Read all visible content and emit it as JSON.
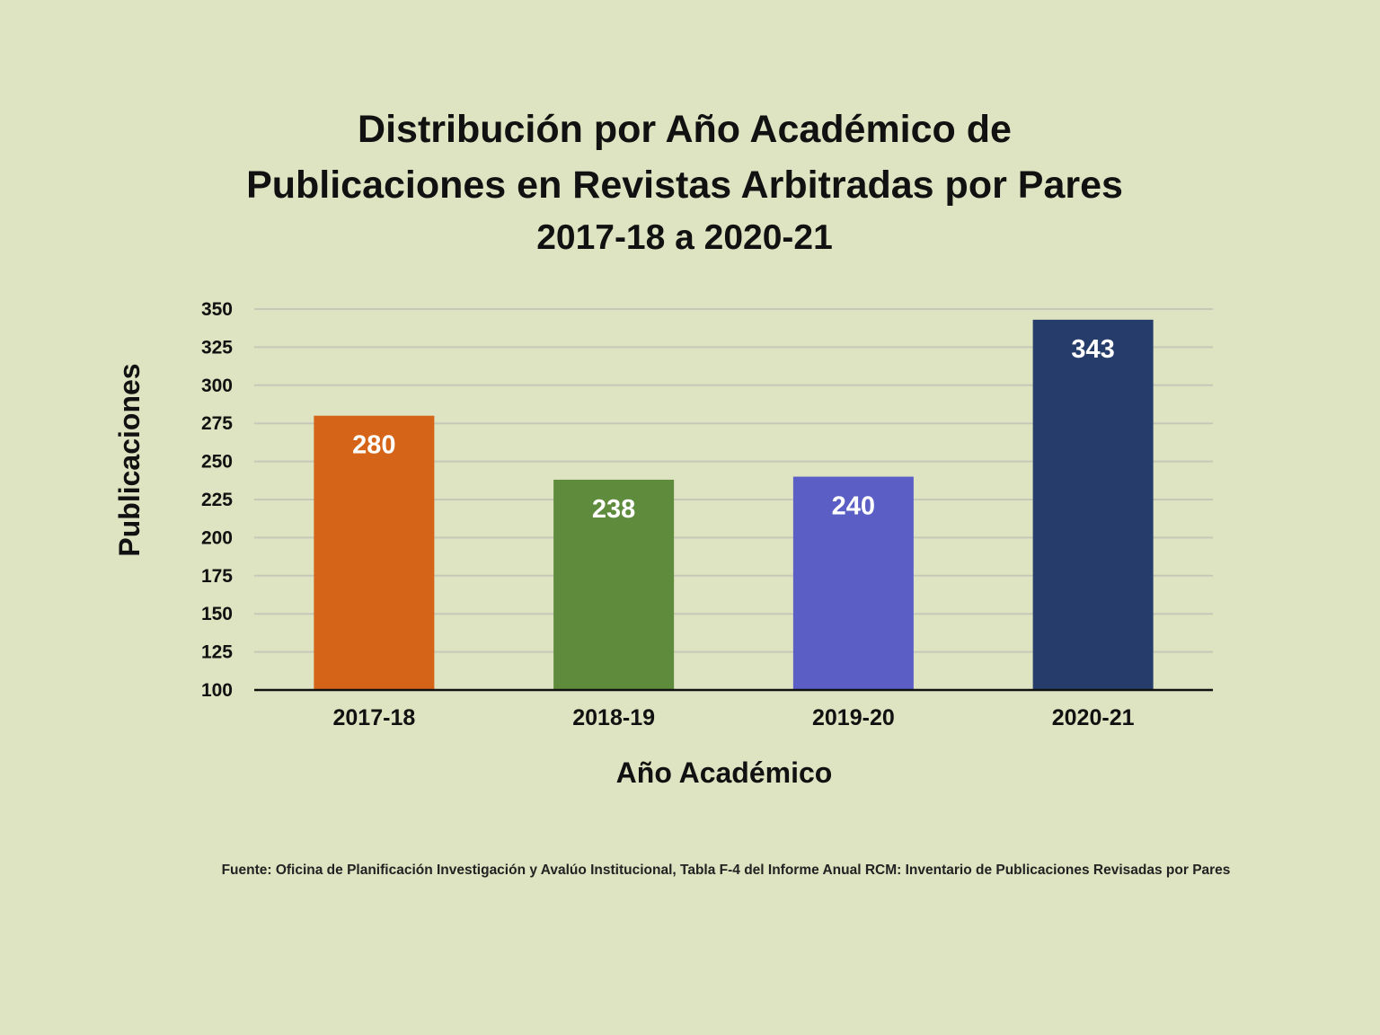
{
  "chart_data": {
    "type": "bar",
    "title_lines": [
      "Distribución por Año Académico de",
      "Publicaciones en Revistas Arbitradas por Pares"
    ],
    "subtitle": "2017-18 a 2020-21",
    "xlabel": "Año Académico",
    "ylabel": "Publicaciones",
    "categories": [
      "2017-18",
      "2018-19",
      "2019-20",
      "2020-21"
    ],
    "values": [
      280,
      238,
      240,
      343
    ],
    "data_labels": [
      "280",
      "238",
      "240",
      "343"
    ],
    "colors": [
      "#d56418",
      "#5e8c3c",
      "#5b5ec4",
      "#263d6b"
    ],
    "ylim": [
      100,
      350
    ],
    "yticks": [
      100,
      125,
      150,
      175,
      200,
      225,
      250,
      275,
      300,
      325,
      350
    ],
    "grid": true,
    "legend": "none"
  },
  "source": "Fuente: Oficina de Planificación Investigación y Avalúo Institucional, Tabla F-4 del Informe Anual RCM: Inventario de Publicaciones Revisadas por Pares"
}
